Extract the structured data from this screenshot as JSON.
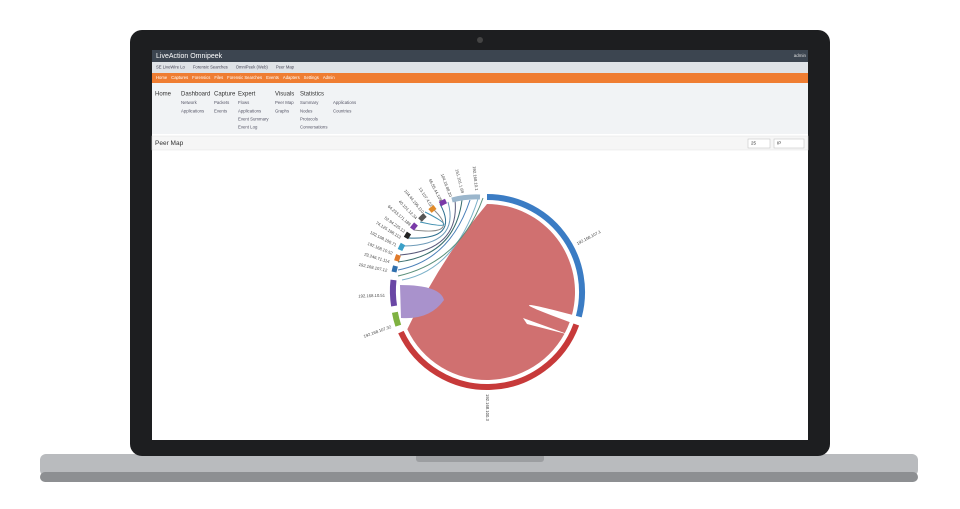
{
  "app": {
    "brand": "LiveAction Omnipeek",
    "user": "admin"
  },
  "breadcrumb": [
    "SE LiveWire Lo",
    "Forensic Searches",
    "OmniPeek (Web)",
    "Peer Map"
  ],
  "nav": [
    "Home",
    "Captures",
    "Forensics",
    "Files",
    "Forensic Searches",
    "Events",
    "Adapters",
    "Settings",
    "Admin"
  ],
  "menu": [
    {
      "title": "Home",
      "items": []
    },
    {
      "title": "Dashboard",
      "items": [
        "Network",
        "Applications"
      ]
    },
    {
      "title": "Capture",
      "items": [
        "Packets",
        "Events"
      ]
    },
    {
      "title": "Expert",
      "items": [
        "Flows",
        "Applications",
        "Event Summary",
        "Event Log"
      ]
    },
    {
      "title": "Visuals",
      "items": [
        "Peer Map",
        "Graphs"
      ]
    },
    {
      "title": "Statistics",
      "items": [
        "Summary",
        "Nodes",
        "Protocols",
        "Conversations"
      ]
    },
    {
      "title": null,
      "items": [
        "Applications",
        "Countries"
      ]
    }
  ],
  "page": {
    "title": "Peer Map",
    "count": "25",
    "mode": "IP"
  },
  "peer_map": {
    "labels": [
      "192.168.107.1",
      "192.168.100.3",
      "192.168.107.32",
      "192.168.10.51",
      "192.168.107.12",
      "23.246.71.114",
      "192.168.10.52",
      "192.168.100.71",
      "74.125.198.113",
      "52.94.225.12",
      "64.233.171.188",
      "40.101.12.34",
      "104.44.195.110",
      "13.107.4.52",
      "65.55.44.109",
      "104.16.88.20",
      "151.101.1.69",
      "192.168.10.1"
    ]
  }
}
